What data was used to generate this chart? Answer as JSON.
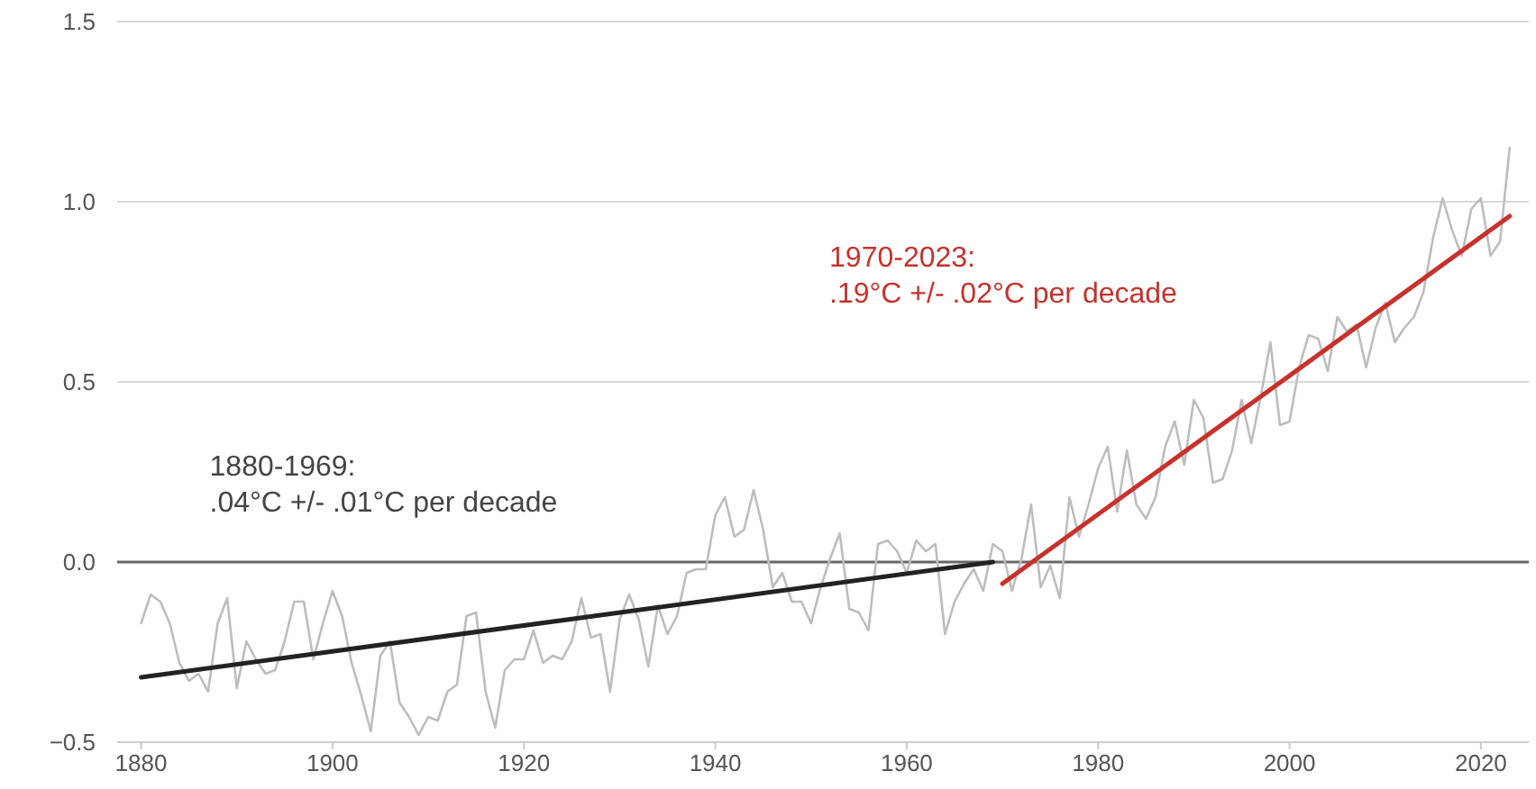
{
  "chart_data": {
    "type": "line",
    "xlim": [
      1877.5,
      2025
    ],
    "xticks": [
      1880,
      1900,
      1920,
      1940,
      1960,
      1980,
      2000,
      2020
    ],
    "ylim": [
      -0.5,
      1.5
    ],
    "yticks": [
      {
        "value": -0.5,
        "label": "−0.5"
      },
      {
        "value": 0,
        "label": "0.0"
      },
      {
        "value": 0.5,
        "label": "0.5"
      },
      {
        "value": 1,
        "label": "1.0"
      },
      {
        "value": 1.5,
        "label": "1.5"
      }
    ],
    "grid": "y",
    "marker": "none",
    "line_style": "solid",
    "ref_lines": [
      {
        "axis": "y",
        "value": 0,
        "color": "#666666"
      }
    ],
    "series": [
      {
        "color": "#bdbdbd",
        "x": [
          1880,
          1881,
          1882,
          1883,
          1884,
          1885,
          1886,
          1887,
          1888,
          1889,
          1890,
          1891,
          1892,
          1893,
          1894,
          1895,
          1896,
          1897,
          1898,
          1899,
          1900,
          1901,
          1902,
          1903,
          1904,
          1905,
          1906,
          1907,
          1908,
          1909,
          1910,
          1911,
          1912,
          1913,
          1914,
          1915,
          1916,
          1917,
          1918,
          1919,
          1920,
          1921,
          1922,
          1923,
          1924,
          1925,
          1926,
          1927,
          1928,
          1929,
          1930,
          1931,
          1932,
          1933,
          1934,
          1935,
          1936,
          1937,
          1938,
          1939,
          1940,
          1941,
          1942,
          1943,
          1944,
          1945,
          1946,
          1947,
          1948,
          1949,
          1950,
          1951,
          1952,
          1953,
          1954,
          1955,
          1956,
          1957,
          1958,
          1959,
          1960,
          1961,
          1962,
          1963,
          1964,
          1965,
          1966,
          1967,
          1968,
          1969,
          1970,
          1971,
          1972,
          1973,
          1974,
          1975,
          1976,
          1977,
          1978,
          1979,
          1980,
          1981,
          1982,
          1983,
          1984,
          1985,
          1986,
          1987,
          1988,
          1989,
          1990,
          1991,
          1992,
          1993,
          1994,
          1995,
          1996,
          1997,
          1998,
          1999,
          2000,
          2001,
          2002,
          2003,
          2004,
          2005,
          2006,
          2007,
          2008,
          2009,
          2010,
          2011,
          2012,
          2013,
          2014,
          2015,
          2016,
          2017,
          2018,
          2019,
          2020,
          2021,
          2022,
          2023
        ],
        "values": [
          -0.17,
          -0.09,
          -0.11,
          -0.17,
          -0.28,
          -0.33,
          -0.31,
          -0.36,
          -0.17,
          -0.1,
          -0.35,
          -0.22,
          -0.27,
          -0.31,
          -0.3,
          -0.22,
          -0.11,
          -0.11,
          -0.27,
          -0.17,
          -0.08,
          -0.15,
          -0.28,
          -0.37,
          -0.47,
          -0.26,
          -0.22,
          -0.39,
          -0.43,
          -0.48,
          -0.43,
          -0.44,
          -0.36,
          -0.34,
          -0.15,
          -0.14,
          -0.36,
          -0.46,
          -0.3,
          -0.27,
          -0.27,
          -0.19,
          -0.28,
          -0.26,
          -0.27,
          -0.22,
          -0.1,
          -0.21,
          -0.2,
          -0.36,
          -0.16,
          -0.09,
          -0.16,
          -0.29,
          -0.12,
          -0.2,
          -0.15,
          -0.03,
          -0.02,
          -0.02,
          0.13,
          0.18,
          0.07,
          0.09,
          0.2,
          0.09,
          -0.07,
          -0.03,
          -0.11,
          -0.11,
          -0.17,
          -0.07,
          0.01,
          0.08,
          -0.13,
          -0.14,
          -0.19,
          0.05,
          0.06,
          0.03,
          -0.03,
          0.06,
          0.03,
          0.05,
          -0.2,
          -0.11,
          -0.06,
          -0.02,
          -0.08,
          0.05,
          0.03,
          -0.08,
          0.01,
          0.16,
          -0.07,
          -0.01,
          -0.1,
          0.18,
          0.07,
          0.16,
          0.26,
          0.32,
          0.14,
          0.31,
          0.16,
          0.12,
          0.18,
          0.32,
          0.39,
          0.27,
          0.45,
          0.4,
          0.22,
          0.23,
          0.31,
          0.45,
          0.33,
          0.46,
          0.61,
          0.38,
          0.39,
          0.54,
          0.63,
          0.62,
          0.53,
          0.68,
          0.64,
          0.66,
          0.54,
          0.65,
          0.72,
          0.61,
          0.65,
          0.68,
          0.75,
          0.9,
          1.01,
          0.92,
          0.85,
          0.98,
          1.01,
          0.85,
          0.89,
          1.15
        ]
      },
      {
        "color": "#222222",
        "x": [
          1880,
          1969
        ],
        "values": [
          -0.32,
          0.0
        ]
      },
      {
        "color": "#c8312b",
        "x": [
          1970,
          2023
        ],
        "values": [
          -0.06,
          0.96
        ]
      }
    ],
    "annotations": [
      "1880-1969:\n.04°C +/- .01°C per decade",
      "1970-2023:\n.19°C +/- .02°C per decade"
    ]
  }
}
